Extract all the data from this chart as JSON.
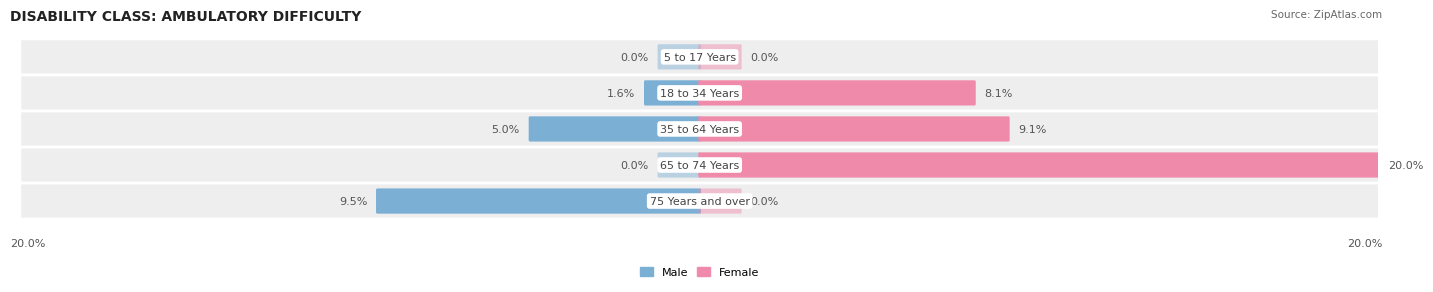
{
  "title": "DISABILITY CLASS: AMBULATORY DIFFICULTY",
  "source": "Source: ZipAtlas.com",
  "categories": [
    "5 to 17 Years",
    "18 to 34 Years",
    "35 to 64 Years",
    "65 to 74 Years",
    "75 Years and over"
  ],
  "male_values": [
    0.0,
    1.6,
    5.0,
    0.0,
    9.5
  ],
  "female_values": [
    0.0,
    8.1,
    9.1,
    20.0,
    0.0
  ],
  "male_color": "#7bafd4",
  "female_color": "#f08aaa",
  "row_bg_color": "#eeeeee",
  "row_bg_color_alt": "#e8e8e8",
  "max_value": 20.0,
  "title_fontsize": 10,
  "label_fontsize": 8.0,
  "value_fontsize": 8.0,
  "tick_fontsize": 8.0,
  "bar_height": 0.62,
  "stub_size": 1.2,
  "center_label_color": "#444444",
  "value_color": "#555555",
  "label_bg_color": "white"
}
